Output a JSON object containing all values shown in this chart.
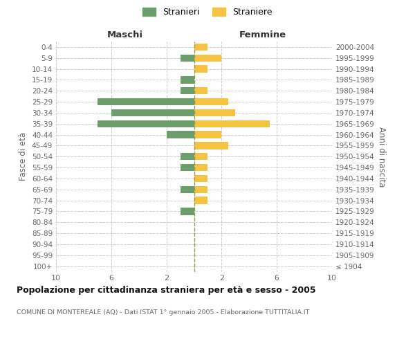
{
  "age_groups": [
    "100+",
    "95-99",
    "90-94",
    "85-89",
    "80-84",
    "75-79",
    "70-74",
    "65-69",
    "60-64",
    "55-59",
    "50-54",
    "45-49",
    "40-44",
    "35-39",
    "30-34",
    "25-29",
    "20-24",
    "15-19",
    "10-14",
    "5-9",
    "0-4"
  ],
  "birth_years": [
    "≤ 1904",
    "1905-1909",
    "1910-1914",
    "1915-1919",
    "1920-1924",
    "1925-1929",
    "1930-1934",
    "1935-1939",
    "1940-1944",
    "1945-1949",
    "1950-1954",
    "1955-1959",
    "1960-1964",
    "1965-1969",
    "1970-1974",
    "1975-1979",
    "1980-1984",
    "1985-1989",
    "1990-1994",
    "1995-1999",
    "2000-2004"
  ],
  "maschi": [
    0,
    0,
    0,
    0,
    0,
    1,
    0,
    1,
    0,
    1,
    1,
    0,
    2,
    7,
    6,
    7,
    1,
    1,
    0,
    1,
    0
  ],
  "femmine": [
    0,
    0,
    0,
    0,
    0,
    0,
    1,
    1,
    1,
    1,
    1,
    2.5,
    2,
    5.5,
    3,
    2.5,
    1,
    0,
    1,
    2,
    1
  ],
  "color_maschi": "#6b9e6b",
  "color_femmine": "#f5c242",
  "title": "Popolazione per cittadinanza straniera per età e sesso - 2005",
  "subtitle": "COMUNE DI MONTEREALE (AQ) - Dati ISTAT 1° gennaio 2005 - Elaborazione TUTTITALIA.IT",
  "ylabel_left": "Fasce di età",
  "ylabel_right": "Anni di nascita",
  "label_maschi": "Maschi",
  "label_femmine": "Femmine",
  "legend_maschi": "Stranieri",
  "legend_femmine": "Straniere",
  "xlim": 10,
  "background_color": "#ffffff",
  "grid_color": "#cccccc"
}
